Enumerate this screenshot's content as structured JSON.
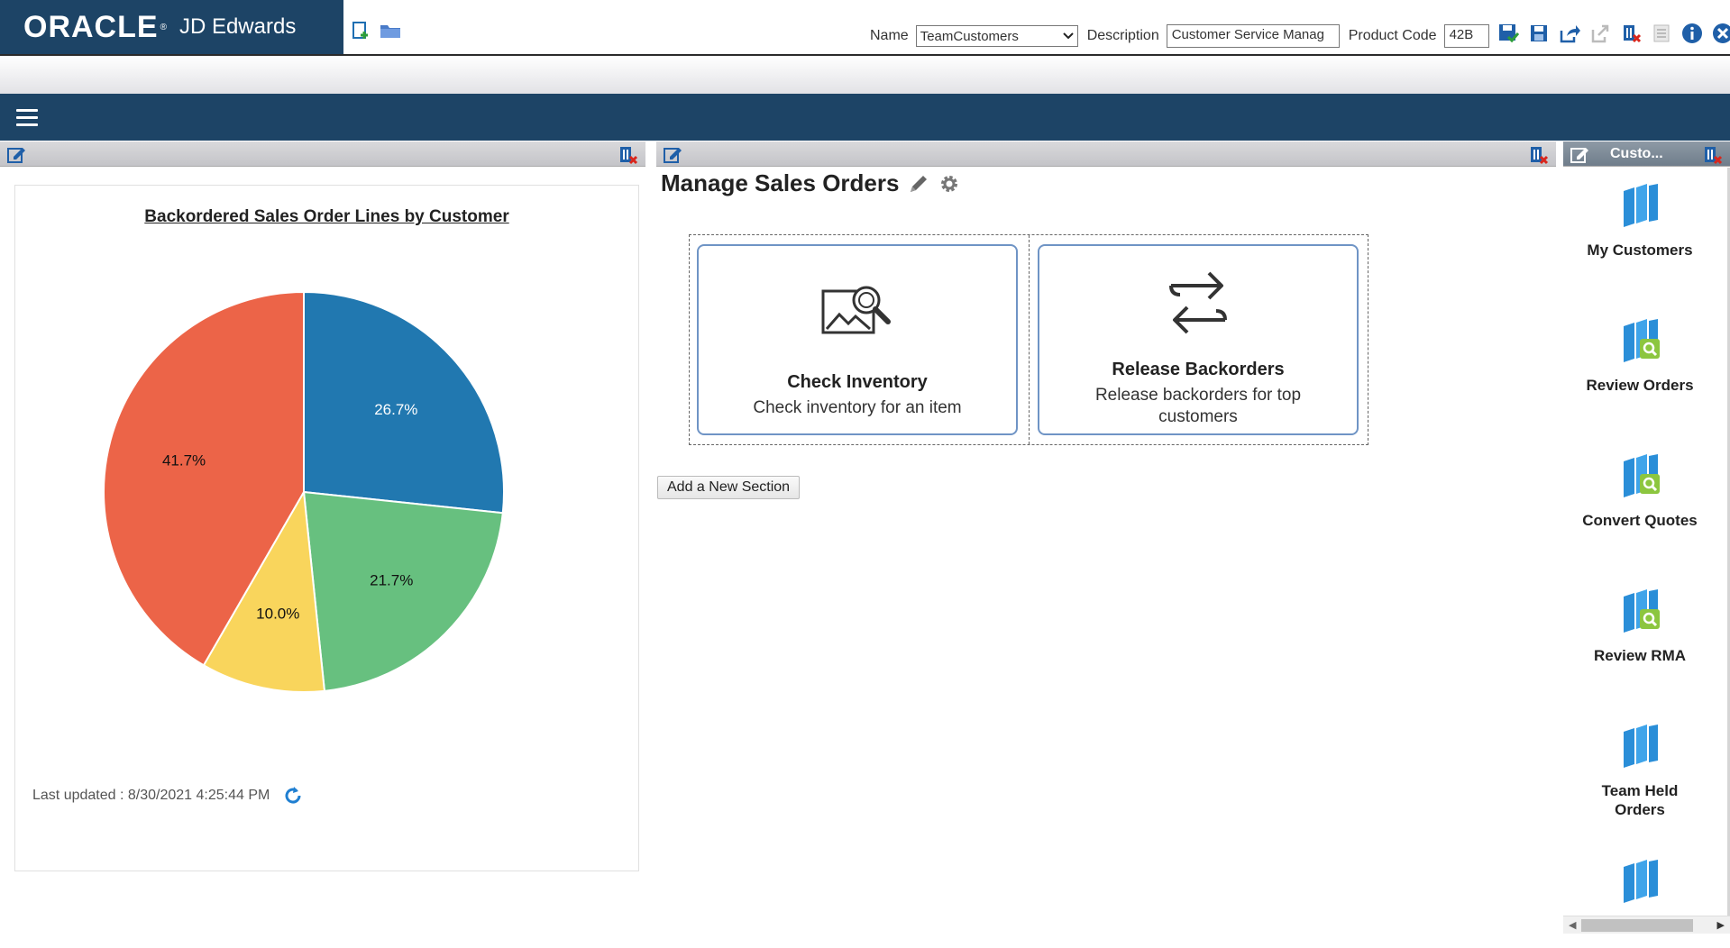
{
  "header": {
    "brand": "ORACLE",
    "product": "JD Edwards",
    "name_label": "Name",
    "name_value": "TeamCustomers",
    "description_label": "Description",
    "description_value": "Customer Service Manag",
    "product_code_label": "Product Code",
    "product_code_value": "42B"
  },
  "panels": {
    "customer_panel_title": "Custo..."
  },
  "chart": {
    "last_updated": "Last updated : 8/30/2021 4:25:44 PM"
  },
  "chart_data": {
    "type": "pie",
    "title": "Backordered Sales Order Lines by Customer",
    "slices": [
      {
        "label": "26.7%",
        "value": 26.7,
        "color": "#2178b0"
      },
      {
        "label": "21.7%",
        "value": 21.7,
        "color": "#67c07f"
      },
      {
        "label": "10.0%",
        "value": 10.0,
        "color": "#f9d55c"
      },
      {
        "label": "41.7%",
        "value": 41.7,
        "color": "#ec6448"
      }
    ]
  },
  "main": {
    "page_title": "Manage Sales Orders",
    "tiles": [
      {
        "title": "Check Inventory",
        "description": "Check inventory for an item"
      },
      {
        "title": "Release Backorders",
        "description": "Release backorders for top customers"
      }
    ],
    "add_section_label": "Add a New Section"
  },
  "sidebar": {
    "items": [
      {
        "label": "My Customers",
        "icon": "book-icon"
      },
      {
        "label": "Review Orders",
        "icon": "book-search-icon"
      },
      {
        "label": "Convert Quotes",
        "icon": "book-search-icon"
      },
      {
        "label": "Review RMA",
        "icon": "book-search-icon"
      },
      {
        "label": "Team Held Orders",
        "icon": "book-icon"
      },
      {
        "label": "",
        "icon": "book-icon"
      }
    ]
  }
}
